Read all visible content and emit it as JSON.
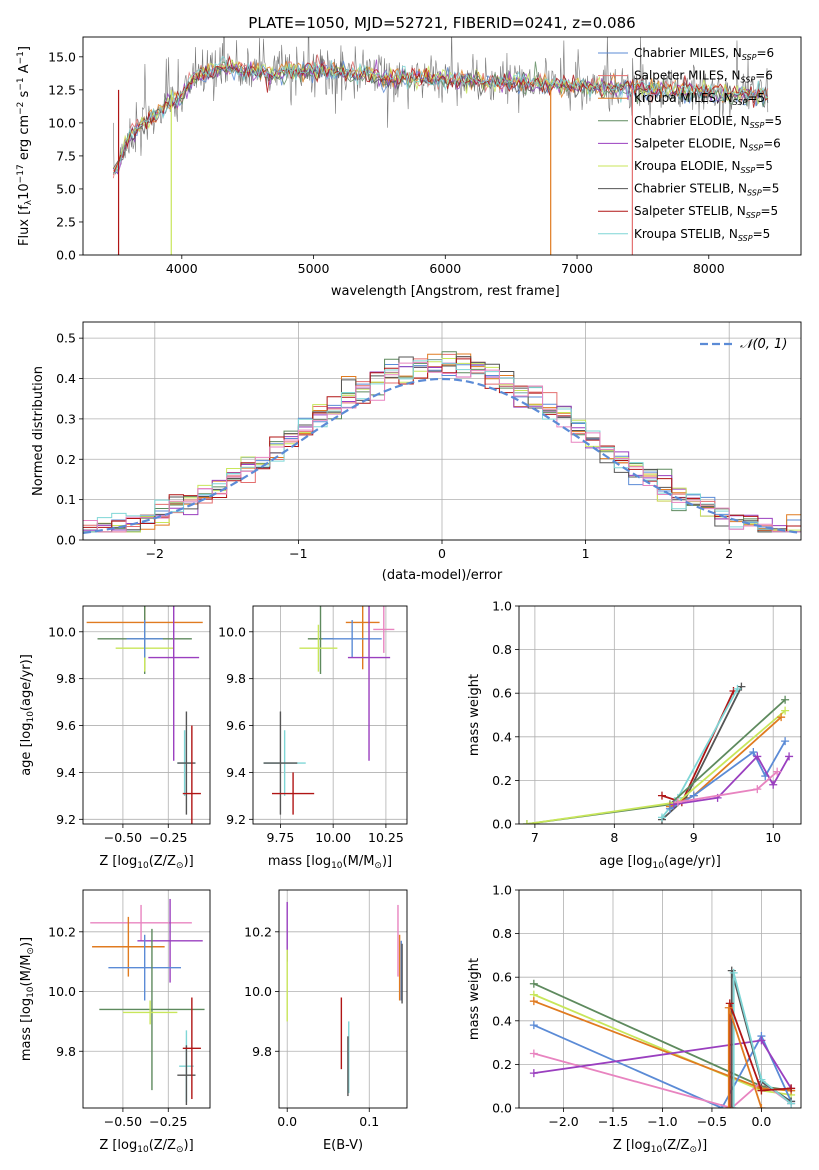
{
  "figure": {
    "title": "PLATE=1050, MJD=52721, FIBERID=0241, z=0.086"
  },
  "colors": {
    "chabrier_miles": "#5b8bd6",
    "salpeter_miles": "#e46f6f",
    "kroupa_miles": "#e07b20",
    "chabrier_elodie": "#5e8a5e",
    "salpeter_elodie": "#9a3fbf",
    "kroupa_elodie": "#c8e65a",
    "chabrier_stelib": "#555555",
    "salpeter_stelib": "#b01515",
    "kroupa_stelib": "#7fd6d6",
    "pink": "#e884c0",
    "grid": "#b0b0b0"
  },
  "chart_data": [
    {
      "id": "spectrum",
      "type": "line",
      "title": "PLATE=1050, MJD=52721, FIBERID=0241, z=0.086",
      "xlabel": "wavelength [Angstrom, rest frame]",
      "ylabel_parts": [
        "Flux [f",
        "λ",
        "10",
        "−17",
        " erg cm",
        "−2",
        " s",
        "−1",
        " A",
        "−1",
        "]"
      ],
      "xlim": [
        3250,
        8700
      ],
      "ylim": [
        0,
        16.5
      ],
      "xticks": [
        4000,
        5000,
        6000,
        7000,
        8000
      ],
      "yticks": [
        0.0,
        2.5,
        5.0,
        7.5,
        10.0,
        12.5,
        15.0
      ],
      "grid": false,
      "legend_position": "right",
      "series": [
        {
          "name": "Chabrier MILES, N",
          "sub": "SSP",
          "suffix": "=6",
          "color_key": "chabrier_miles"
        },
        {
          "name": "Salpeter MILES, N",
          "sub": "SSP",
          "suffix": "=6",
          "color_key": "salpeter_miles"
        },
        {
          "name": "Kroupa MILES, N",
          "sub": "SSP",
          "suffix": "=5",
          "color_key": "kroupa_miles"
        },
        {
          "name": "Chabrier ELODIE, N",
          "sub": "SSP",
          "suffix": "=5",
          "color_key": "chabrier_elodie"
        },
        {
          "name": "Salpeter ELODIE, N",
          "sub": "SSP",
          "suffix": "=6",
          "color_key": "salpeter_elodie"
        },
        {
          "name": "Kroupa ELODIE, N",
          "sub": "SSP",
          "suffix": "=5",
          "color_key": "kroupa_elodie"
        },
        {
          "name": "Chabrier STELIB, N",
          "sub": "SSP",
          "suffix": "=5",
          "color_key": "chabrier_stelib"
        },
        {
          "name": "Salpeter STELIB, N",
          "sub": "SSP",
          "suffix": "=5",
          "color_key": "salpeter_stelib"
        },
        {
          "name": "Kroupa STELIB, N",
          "sub": "SSP",
          "suffix": "=5",
          "color_key": "kroupa_stelib"
        }
      ],
      "continuum_x": [
        3500,
        3600,
        3700,
        3800,
        3900,
        4000,
        4100,
        4300,
        4500,
        4700,
        5000,
        5500,
        6000,
        6500,
        7000,
        7400,
        7800,
        8200,
        8500
      ],
      "continuum_y": [
        6.5,
        9.0,
        10.0,
        10.5,
        11.5,
        12.0,
        13.5,
        14.2,
        14.0,
        13.8,
        14.0,
        13.5,
        13.3,
        13.0,
        12.8,
        12.6,
        12.4,
        12.2,
        12.0
      ],
      "drop_lines": [
        {
          "x": 3520,
          "color_key": "salpeter_stelib"
        },
        {
          "x": 3920,
          "color_key": "kroupa_elodie"
        },
        {
          "x": 6800,
          "color_key": "kroupa_miles"
        },
        {
          "x": 7420,
          "color_key": "salpeter_miles"
        }
      ]
    },
    {
      "id": "residuals",
      "type": "histogram",
      "xlabel": "(data-model)/error",
      "ylabel": "Normed distribution",
      "xlim": [
        -2.5,
        2.5
      ],
      "ylim": [
        0,
        0.54
      ],
      "xticks": [
        -2,
        -1,
        0,
        1,
        2
      ],
      "yticks": [
        0.0,
        0.1,
        0.2,
        0.3,
        0.4,
        0.5
      ],
      "grid": true,
      "legend_position": "top-right",
      "reference_label": "𝒩(0, 1)",
      "bin_width": 0.1
    },
    {
      "id": "age_vs_Z",
      "type": "errorbar",
      "xlabel": "Z [log10(Z/Z⊙)]",
      "xlabel_parts": [
        "Z [log",
        "10",
        "(Z/Z",
        "⊙",
        ")]"
      ],
      "ylabel": "age [log10(age/yr)]",
      "ylabel_parts": [
        "age  [log",
        "10",
        "(age/yr)]"
      ],
      "xlim": [
        -0.72,
        -0.02
      ],
      "ylim": [
        9.18,
        10.11
      ],
      "xticks": [
        -0.5,
        -0.25
      ],
      "yticks": [
        9.2,
        9.4,
        9.6,
        9.8,
        10.0
      ],
      "grid": true,
      "points": [
        {
          "x": -0.38,
          "y": 10.04,
          "xerr": 0.32,
          "yerr": 0.2,
          "color_key": "kroupa_miles"
        },
        {
          "x": -0.38,
          "y": 9.97,
          "xerr": 0.26,
          "yerr": 0.15,
          "color_key": "chabrier_elodie"
        },
        {
          "x": -0.38,
          "y": 9.93,
          "xerr": 0.16,
          "yerr": 0.1,
          "color_key": "kroupa_elodie"
        },
        {
          "x": -0.38,
          "y": 9.97,
          "xerr": 0.1,
          "yerr": 0.08,
          "color_key": "chabrier_miles"
        },
        {
          "x": -0.22,
          "y": 9.89,
          "xerr": 0.14,
          "yerr": 0.44,
          "color_key": "salpeter_elodie"
        },
        {
          "x": -0.16,
          "y": 9.44,
          "xerr": 0.04,
          "yerr": 0.14,
          "color_key": "kroupa_stelib"
        },
        {
          "x": -0.15,
          "y": 9.44,
          "xerr": 0.05,
          "yerr": 0.22,
          "color_key": "chabrier_stelib"
        },
        {
          "x": -0.12,
          "y": 9.31,
          "xerr": 0.05,
          "yerr": 0.29,
          "color_key": "salpeter_stelib"
        }
      ]
    },
    {
      "id": "age_vs_mass",
      "type": "errorbar",
      "xlabel": "mass [log10(M/M⊙)]",
      "xlabel_parts": [
        "mass [log",
        "10",
        "(M/M",
        "⊙",
        ")]"
      ],
      "xlim": [
        9.62,
        10.35
      ],
      "ylim": [
        9.18,
        10.11
      ],
      "xticks": [
        9.75,
        10.0,
        10.25
      ],
      "yticks": [
        9.2,
        9.4,
        9.6,
        9.8,
        10.0
      ],
      "grid": true,
      "points": [
        {
          "x": 10.14,
          "y": 10.04,
          "xerr": 0.08,
          "yerr": 0.2,
          "color_key": "kroupa_miles"
        },
        {
          "x": 9.94,
          "y": 9.97,
          "xerr": 0.06,
          "yerr": 0.15,
          "color_key": "chabrier_elodie"
        },
        {
          "x": 9.93,
          "y": 9.93,
          "xerr": 0.09,
          "yerr": 0.1,
          "color_key": "kroupa_elodie"
        },
        {
          "x": 10.09,
          "y": 9.97,
          "xerr": 0.14,
          "yerr": 0.08,
          "color_key": "chabrier_miles"
        },
        {
          "x": 10.17,
          "y": 9.89,
          "xerr": 0.1,
          "yerr": 0.44,
          "color_key": "salpeter_elodie"
        },
        {
          "x": 10.24,
          "y": 10.01,
          "xerr": 0.05,
          "yerr": 0.1,
          "color_key": "pink"
        },
        {
          "x": 9.77,
          "y": 9.44,
          "xerr": 0.1,
          "yerr": 0.14,
          "color_key": "kroupa_stelib"
        },
        {
          "x": 9.75,
          "y": 9.44,
          "xerr": 0.08,
          "yerr": 0.22,
          "color_key": "chabrier_stelib"
        },
        {
          "x": 9.81,
          "y": 9.31,
          "xerr": 0.1,
          "yerr": 0.09,
          "color_key": "salpeter_stelib"
        }
      ]
    },
    {
      "id": "massweight_vs_age",
      "type": "line",
      "xlabel": "age  [log10(age/yr)]",
      "xlabel_parts": [
        "age  [log",
        "10",
        "(age/yr)]"
      ],
      "ylabel": "mass weight",
      "xlim": [
        6.8,
        10.35
      ],
      "ylim": [
        0,
        1.0
      ],
      "xticks": [
        7,
        8,
        9,
        10
      ],
      "yticks": [
        0.0,
        0.2,
        0.4,
        0.6,
        0.8,
        1.0
      ],
      "grid": true,
      "series": [
        {
          "color_key": "chabrier_stelib",
          "x": [
            8.6,
            8.9,
            9.6
          ],
          "y": [
            0.02,
            0.12,
            0.63
          ]
        },
        {
          "color_key": "salpeter_stelib",
          "x": [
            8.6,
            8.85,
            9.5
          ],
          "y": [
            0.13,
            0.1,
            0.61
          ]
        },
        {
          "color_key": "kroupa_stelib",
          "x": [
            8.6,
            8.8,
            9.55
          ],
          "y": [
            0.03,
            0.12,
            0.62
          ]
        },
        {
          "color_key": "chabrier_elodie",
          "x": [
            6.9,
            8.7,
            10.15
          ],
          "y": [
            0.0,
            0.09,
            0.57
          ]
        },
        {
          "color_key": "kroupa_elodie",
          "x": [
            6.9,
            8.8,
            10.15
          ],
          "y": [
            0.0,
            0.1,
            0.52
          ]
        },
        {
          "color_key": "kroupa_miles",
          "x": [
            8.7,
            9.0,
            10.1
          ],
          "y": [
            0.08,
            0.13,
            0.49
          ]
        },
        {
          "color_key": "chabrier_miles",
          "x": [
            8.7,
            9.0,
            9.75,
            9.9,
            10.15
          ],
          "y": [
            0.07,
            0.13,
            0.33,
            0.22,
            0.38
          ]
        },
        {
          "color_key": "salpeter_elodie",
          "x": [
            8.75,
            9.3,
            9.8,
            10.0,
            10.2
          ],
          "y": [
            0.09,
            0.12,
            0.31,
            0.18,
            0.31
          ]
        },
        {
          "color_key": "pink",
          "x": [
            8.8,
            9.8,
            10.05
          ],
          "y": [
            0.1,
            0.16,
            0.24
          ]
        }
      ]
    },
    {
      "id": "mass_vs_Z",
      "type": "errorbar",
      "xlabel": "Z [log10(Z/Z⊙)]",
      "xlabel_parts": [
        "Z [log",
        "10",
        "(Z/Z",
        "⊙",
        ")]"
      ],
      "ylabel": "mass [log10(M/M⊙)]",
      "ylabel_parts": [
        "mass [log",
        "10",
        "(M/M",
        "⊙",
        ")]"
      ],
      "xlim": [
        -0.72,
        -0.02
      ],
      "ylim": [
        9.61,
        10.34
      ],
      "xticks": [
        -0.5,
        -0.25
      ],
      "yticks": [
        9.8,
        10.0,
        10.2
      ],
      "grid": true,
      "points": [
        {
          "x": -0.4,
          "y": 10.23,
          "xerr": 0.28,
          "yerr": 0.06,
          "color_key": "pink"
        },
        {
          "x": -0.24,
          "y": 10.17,
          "xerr": 0.18,
          "yerr": 0.14,
          "color_key": "salpeter_elodie"
        },
        {
          "x": -0.47,
          "y": 10.15,
          "xerr": 0.2,
          "yerr": 0.1,
          "color_key": "kroupa_miles"
        },
        {
          "x": -0.38,
          "y": 10.08,
          "xerr": 0.2,
          "yerr": 0.11,
          "color_key": "chabrier_miles"
        },
        {
          "x": -0.34,
          "y": 9.94,
          "xerr": 0.29,
          "yerr": 0.27,
          "color_key": "chabrier_elodie"
        },
        {
          "x": -0.35,
          "y": 9.93,
          "xerr": 0.15,
          "yerr": 0.04,
          "color_key": "kroupa_elodie"
        },
        {
          "x": -0.15,
          "y": 9.75,
          "xerr": 0.04,
          "yerr": 0.12,
          "color_key": "kroupa_stelib"
        },
        {
          "x": -0.15,
          "y": 9.72,
          "xerr": 0.05,
          "yerr": 0.1,
          "color_key": "chabrier_stelib"
        },
        {
          "x": -0.12,
          "y": 9.81,
          "xerr": 0.05,
          "yerr": 0.17,
          "color_key": "salpeter_stelib"
        }
      ]
    },
    {
      "id": "mass_vs_EBV",
      "type": "errorbar",
      "xlabel": "E(B-V)",
      "xlim": [
        -0.01,
        0.146
      ],
      "ylim": [
        9.61,
        10.34
      ],
      "xticks": [
        0.0,
        0.1
      ],
      "yticks": [
        9.8,
        10.0,
        10.2
      ],
      "grid": true,
      "points": [
        {
          "x": 0.0,
          "y": 10.2,
          "xerr": 0,
          "yerr": 0.1,
          "color_key": "salpeter_elodie"
        },
        {
          "x": 0.0,
          "y": 10.02,
          "xerr": 0,
          "yerr": 0.12,
          "color_key": "kroupa_elodie"
        },
        {
          "x": 0.066,
          "y": 9.86,
          "xerr": 0,
          "yerr": 0.12,
          "color_key": "salpeter_stelib"
        },
        {
          "x": 0.075,
          "y": 9.78,
          "xerr": 0,
          "yerr": 0.12,
          "color_key": "kroupa_stelib"
        },
        {
          "x": 0.074,
          "y": 9.75,
          "xerr": 0,
          "yerr": 0.1,
          "color_key": "chabrier_stelib"
        },
        {
          "x": 0.135,
          "y": 10.17,
          "xerr": 0,
          "yerr": 0.12,
          "color_key": "pink"
        },
        {
          "x": 0.137,
          "y": 10.08,
          "xerr": 0,
          "yerr": 0.11,
          "color_key": "kroupa_miles"
        },
        {
          "x": 0.139,
          "y": 10.07,
          "xerr": 0,
          "yerr": 0.1,
          "color_key": "chabrier_miles"
        },
        {
          "x": 0.14,
          "y": 10.06,
          "xerr": 0,
          "yerr": 0.1,
          "color_key": "chabrier_stelib"
        }
      ]
    },
    {
      "id": "massweight_vs_Z",
      "type": "line",
      "xlabel": "Z [log10(Z/Z⊙)]",
      "xlabel_parts": [
        "Z [log",
        "10",
        "(Z/Z",
        "⊙",
        ")]"
      ],
      "ylabel": "mass weight",
      "xlim": [
        -2.45,
        0.4
      ],
      "ylim": [
        0,
        1.0
      ],
      "xticks": [
        -2.0,
        -1.5,
        -1.0,
        -0.5,
        0.0
      ],
      "yticks": [
        0.0,
        0.2,
        0.4,
        0.6,
        0.8,
        1.0
      ],
      "grid": true,
      "series": [
        {
          "color_key": "chabrier_elodie",
          "x": [
            -2.3,
            0.0,
            0.3
          ],
          "y": [
            0.57,
            0.1,
            0.08
          ]
        },
        {
          "color_key": "kroupa_elodie",
          "x": [
            -2.3,
            0.0,
            0.3
          ],
          "y": [
            0.52,
            0.08,
            0.06
          ]
        },
        {
          "color_key": "kroupa_miles",
          "x": [
            -2.3,
            0.0,
            0.3
          ],
          "y": [
            0.49,
            0.09,
            0.08
          ]
        },
        {
          "color_key": "chabrier_miles",
          "x": [
            -2.3,
            -0.4,
            0.0,
            0.3
          ],
          "y": [
            0.38,
            0.0,
            0.33,
            0.03
          ]
        },
        {
          "color_key": "pink",
          "x": [
            -2.3,
            -0.3,
            0.0,
            0.3
          ],
          "y": [
            0.25,
            0.0,
            0.12,
            0.02
          ]
        },
        {
          "color_key": "salpeter_elodie",
          "x": [
            -2.3,
            0.0,
            0.3
          ],
          "y": [
            0.16,
            0.31,
            0.09
          ]
        },
        {
          "color_key": "chabrier_stelib",
          "x": [
            -0.3,
            -0.3,
            0.0,
            0.3
          ],
          "y": [
            0.0,
            0.63,
            0.12,
            0.03
          ]
        },
        {
          "color_key": "kroupa_stelib",
          "x": [
            -0.28,
            -0.28,
            0.0,
            0.3
          ],
          "y": [
            0.0,
            0.62,
            0.13,
            0.02
          ]
        },
        {
          "color_key": "salpeter_stelib",
          "x": [
            -0.32,
            -0.32,
            0.0,
            0.3
          ],
          "y": [
            0.0,
            0.48,
            0.08,
            0.09
          ]
        },
        {
          "color_key": "kroupa_miles",
          "x": [
            -0.33,
            -0.33,
            0.0
          ],
          "y": [
            0.0,
            0.46,
            0.0
          ]
        }
      ]
    }
  ]
}
